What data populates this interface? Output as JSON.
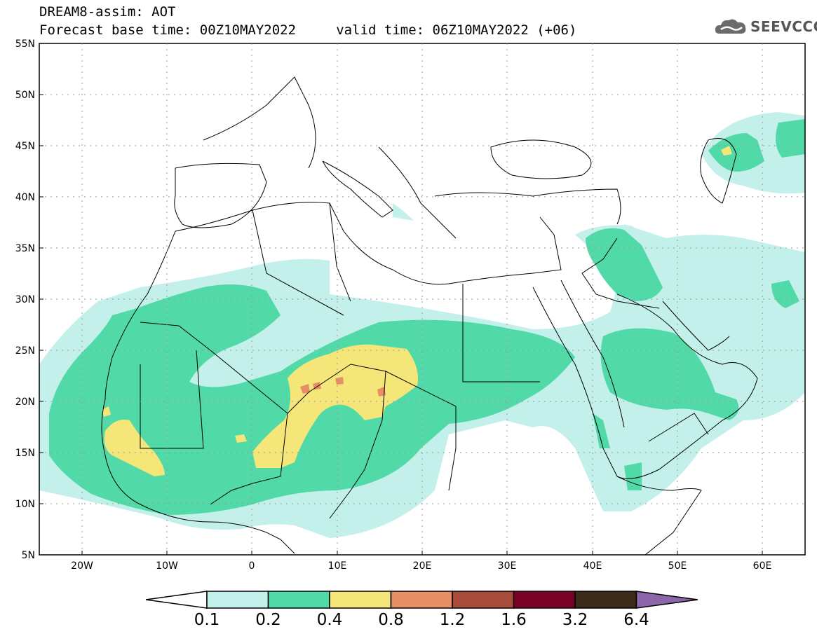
{
  "title_line1": "DREAM8-assim: AOT",
  "title_line2": "Forecast base time: 00Z10MAY2022     valid time: 06Z10MAY2022 (+06)",
  "logo_text": "SEEVCCC",
  "map": {
    "lon_range": [
      -25,
      65
    ],
    "lat_range": [
      5,
      55
    ],
    "lat_ticks": [
      "55N",
      "50N",
      "45N",
      "40N",
      "35N",
      "30N",
      "25N",
      "20N",
      "15N",
      "10N",
      "5N"
    ],
    "lon_ticks": [
      "20W",
      "10W",
      "0",
      "10E",
      "20E",
      "30E",
      "40E",
      "50E",
      "60E"
    ]
  },
  "colorbar": {
    "levels": [
      "0.1",
      "0.2",
      "0.4",
      "0.8",
      "1.2",
      "1.6",
      "3.2",
      "6.4"
    ],
    "colors": [
      "#ffffff",
      "#c3f0ea",
      "#52d9a8",
      "#f5e67a",
      "#e88e66",
      "#a84a3c",
      "#7a0026",
      "#3b2a1a",
      "#8b66a8"
    ]
  }
}
